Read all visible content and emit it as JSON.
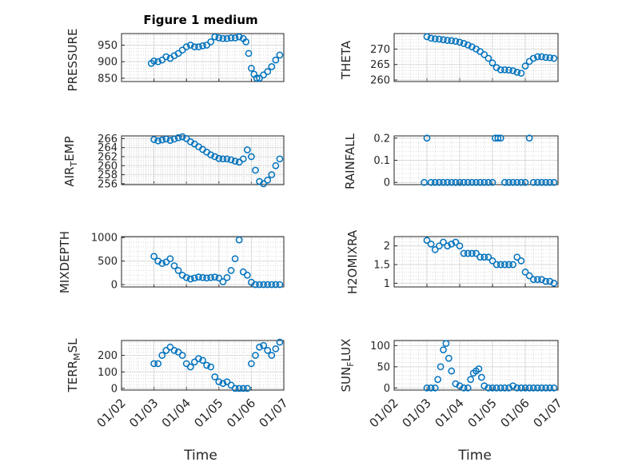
{
  "figure_title": "Figure 1 medium",
  "chart_data": [
    {
      "type": "scatter",
      "title": "Figure 1 medium",
      "ylabel": "PRESSURE",
      "xlim": [
        "2000-01-02",
        "2000-01-07"
      ],
      "ylim": [
        840,
        985
      ],
      "yticks": [
        850,
        900,
        950
      ],
      "grid": true,
      "x_tick_labels_shown": false,
      "x": [
        "2000-01-02T22:00",
        "2000-01-03T00:00",
        "2000-01-03T03:00",
        "2000-01-03T06:00",
        "2000-01-03T09:00",
        "2000-01-03T12:00",
        "2000-01-03T15:00",
        "2000-01-03T18:00",
        "2000-01-03T21:00",
        "2000-01-04T00:00",
        "2000-01-04T03:00",
        "2000-01-04T06:00",
        "2000-01-04T09:00",
        "2000-01-04T12:00",
        "2000-01-04T15:00",
        "2000-01-04T18:00",
        "2000-01-04T21:00",
        "2000-01-05T00:00",
        "2000-01-05T03:00",
        "2000-01-05T06:00",
        "2000-01-05T09:00",
        "2000-01-05T12:00",
        "2000-01-05T15:00",
        "2000-01-05T18:00",
        "2000-01-05T20:00",
        "2000-01-05T22:00",
        "2000-01-06T00:00",
        "2000-01-06T02:00",
        "2000-01-06T04:00",
        "2000-01-06T06:00",
        "2000-01-06T09:00",
        "2000-01-06T12:00",
        "2000-01-06T15:00",
        "2000-01-06T18:00",
        "2000-01-06T21:00"
      ],
      "y": [
        895,
        902,
        900,
        905,
        915,
        910,
        918,
        925,
        935,
        945,
        950,
        945,
        945,
        948,
        950,
        960,
        975,
        972,
        970,
        970,
        972,
        972,
        975,
        970,
        960,
        925,
        880,
        862,
        850,
        850,
        860,
        870,
        885,
        905,
        920
      ]
    },
    {
      "type": "scatter",
      "ylabel": "THETA",
      "xlim": [
        "2000-01-02",
        "2000-01-07"
      ],
      "ylim": [
        259.5,
        275
      ],
      "yticks": [
        260,
        265,
        270
      ],
      "grid": true,
      "x_tick_labels_shown": false,
      "x": [
        "2000-01-03T00:00",
        "2000-01-03T03:00",
        "2000-01-03T06:00",
        "2000-01-03T09:00",
        "2000-01-03T12:00",
        "2000-01-03T15:00",
        "2000-01-03T18:00",
        "2000-01-03T21:00",
        "2000-01-04T00:00",
        "2000-01-04T03:00",
        "2000-01-04T06:00",
        "2000-01-04T09:00",
        "2000-01-04T12:00",
        "2000-01-04T15:00",
        "2000-01-04T18:00",
        "2000-01-04T21:00",
        "2000-01-05T00:00",
        "2000-01-05T03:00",
        "2000-01-05T06:00",
        "2000-01-05T09:00",
        "2000-01-05T12:00",
        "2000-01-05T15:00",
        "2000-01-05T18:00",
        "2000-01-05T21:00",
        "2000-01-06T00:00",
        "2000-01-06T03:00",
        "2000-01-06T06:00",
        "2000-01-06T09:00",
        "2000-01-06T12:00",
        "2000-01-06T15:00",
        "2000-01-06T18:00",
        "2000-01-06T21:00"
      ],
      "y": [
        274,
        273.5,
        273.3,
        273.2,
        273,
        272.8,
        272.7,
        272.5,
        272.2,
        271.8,
        271.3,
        270.7,
        270,
        269.2,
        268.2,
        267,
        265.5,
        264,
        263.3,
        263.3,
        263.2,
        263,
        262.5,
        262.2,
        264.5,
        266,
        267,
        267.5,
        267.5,
        267.3,
        267.2,
        267
      ]
    },
    {
      "type": "scatter",
      "ylabel": "AIR_TEMP",
      "xlim": [
        "2000-01-02",
        "2000-01-07"
      ],
      "ylim": [
        255.8,
        266.6
      ],
      "yticks": [
        256,
        258,
        260,
        262,
        264,
        266
      ],
      "grid": true,
      "x_tick_labels_shown": false,
      "x": [
        "2000-01-03T00:00",
        "2000-01-03T03:00",
        "2000-01-03T06:00",
        "2000-01-03T09:00",
        "2000-01-03T12:00",
        "2000-01-03T15:00",
        "2000-01-03T18:00",
        "2000-01-03T21:00",
        "2000-01-04T00:00",
        "2000-01-04T03:00",
        "2000-01-04T06:00",
        "2000-01-04T09:00",
        "2000-01-04T12:00",
        "2000-01-04T15:00",
        "2000-01-04T18:00",
        "2000-01-04T21:00",
        "2000-01-05T00:00",
        "2000-01-05T03:00",
        "2000-01-05T06:00",
        "2000-01-05T09:00",
        "2000-01-05T12:00",
        "2000-01-05T15:00",
        "2000-01-05T18:00",
        "2000-01-05T21:00",
        "2000-01-06T00:00",
        "2000-01-06T03:00",
        "2000-01-06T06:00",
        "2000-01-06T09:00",
        "2000-01-06T12:00",
        "2000-01-06T15:00",
        "2000-01-06T18:00",
        "2000-01-06T21:00"
      ],
      "y": [
        265.8,
        265.5,
        265.7,
        265.9,
        265.6,
        265.9,
        266.2,
        266.4,
        266,
        265.3,
        264.8,
        264.2,
        263.6,
        263,
        262.4,
        262,
        261.6,
        261.5,
        261.5,
        261.3,
        261,
        260.8,
        261.5,
        263.5,
        262,
        259,
        256.5,
        256,
        256.8,
        258,
        260,
        261.5
      ]
    },
    {
      "type": "scatter",
      "ylabel": "RAINFALL",
      "xlim": [
        "2000-01-02",
        "2000-01-07"
      ],
      "ylim": [
        -0.01,
        0.21
      ],
      "yticks": [
        0,
        0.1,
        0.2
      ],
      "grid": true,
      "x_tick_labels_shown": false,
      "x": [
        "2000-01-02T22:00",
        "2000-01-03T00:00",
        "2000-01-03T03:00",
        "2000-01-03T06:00",
        "2000-01-03T09:00",
        "2000-01-03T12:00",
        "2000-01-03T15:00",
        "2000-01-03T18:00",
        "2000-01-03T21:00",
        "2000-01-04T00:00",
        "2000-01-04T03:00",
        "2000-01-04T06:00",
        "2000-01-04T09:00",
        "2000-01-04T12:00",
        "2000-01-04T15:00",
        "2000-01-04T18:00",
        "2000-01-04T21:00",
        "2000-01-05T00:00",
        "2000-01-05T02:00",
        "2000-01-05T04:00",
        "2000-01-05T06:00",
        "2000-01-05T09:00",
        "2000-01-05T12:00",
        "2000-01-05T15:00",
        "2000-01-05T18:00",
        "2000-01-05T21:00",
        "2000-01-06T00:00",
        "2000-01-06T03:00",
        "2000-01-06T06:00",
        "2000-01-06T09:00",
        "2000-01-06T12:00",
        "2000-01-06T15:00",
        "2000-01-06T18:00",
        "2000-01-06T21:00"
      ],
      "y": [
        0,
        0.2,
        0,
        0,
        0,
        0,
        0,
        0,
        0,
        0,
        0,
        0,
        0,
        0,
        0,
        0,
        0,
        0,
        0.2,
        0.2,
        0.2,
        0,
        0,
        0,
        0,
        0,
        0,
        0.2,
        0,
        0,
        0,
        0,
        0,
        0
      ]
    },
    {
      "type": "scatter",
      "ylabel": "MIXDEPTH",
      "xlim": [
        "2000-01-02",
        "2000-01-07"
      ],
      "ylim": [
        -50,
        1020
      ],
      "yticks": [
        0,
        500,
        1000
      ],
      "grid": true,
      "x_tick_labels_shown": false,
      "x": [
        "2000-01-03T00:00",
        "2000-01-03T03:00",
        "2000-01-03T06:00",
        "2000-01-03T09:00",
        "2000-01-03T12:00",
        "2000-01-03T15:00",
        "2000-01-03T18:00",
        "2000-01-03T21:00",
        "2000-01-04T00:00",
        "2000-01-04T03:00",
        "2000-01-04T06:00",
        "2000-01-04T09:00",
        "2000-01-04T12:00",
        "2000-01-04T15:00",
        "2000-01-04T18:00",
        "2000-01-04T21:00",
        "2000-01-05T00:00",
        "2000-01-05T03:00",
        "2000-01-05T06:00",
        "2000-01-05T09:00",
        "2000-01-05T12:00",
        "2000-01-05T15:00",
        "2000-01-05T18:00",
        "2000-01-05T21:00",
        "2000-01-06T00:00",
        "2000-01-06T03:00",
        "2000-01-06T06:00",
        "2000-01-06T09:00",
        "2000-01-06T12:00",
        "2000-01-06T15:00",
        "2000-01-06T18:00",
        "2000-01-06T21:00"
      ],
      "y": [
        600,
        500,
        450,
        480,
        550,
        400,
        300,
        200,
        150,
        120,
        140,
        160,
        150,
        140,
        150,
        160,
        140,
        60,
        150,
        300,
        550,
        950,
        270,
        200,
        50,
        0,
        0,
        0,
        0,
        0,
        0,
        0
      ]
    },
    {
      "type": "scatter",
      "ylabel": "H2OMIXRA",
      "xlim": [
        "2000-01-02",
        "2000-01-07"
      ],
      "ylim": [
        0.9,
        2.25
      ],
      "yticks": [
        1,
        1.5,
        2
      ],
      "grid": true,
      "x_tick_labels_shown": false,
      "x": [
        "2000-01-03T00:00",
        "2000-01-03T03:00",
        "2000-01-03T06:00",
        "2000-01-03T09:00",
        "2000-01-03T12:00",
        "2000-01-03T15:00",
        "2000-01-03T18:00",
        "2000-01-03T21:00",
        "2000-01-04T00:00",
        "2000-01-04T03:00",
        "2000-01-04T06:00",
        "2000-01-04T09:00",
        "2000-01-04T12:00",
        "2000-01-04T15:00",
        "2000-01-04T18:00",
        "2000-01-04T21:00",
        "2000-01-05T00:00",
        "2000-01-05T03:00",
        "2000-01-05T06:00",
        "2000-01-05T09:00",
        "2000-01-05T12:00",
        "2000-01-05T15:00",
        "2000-01-05T18:00",
        "2000-01-05T21:00",
        "2000-01-06T00:00",
        "2000-01-06T03:00",
        "2000-01-06T06:00",
        "2000-01-06T09:00",
        "2000-01-06T12:00",
        "2000-01-06T15:00",
        "2000-01-06T18:00",
        "2000-01-06T21:00"
      ],
      "y": [
        2.15,
        2.05,
        1.9,
        2,
        2.1,
        2,
        2.05,
        2.1,
        2,
        1.8,
        1.8,
        1.8,
        1.8,
        1.7,
        1.7,
        1.7,
        1.6,
        1.5,
        1.5,
        1.5,
        1.5,
        1.5,
        1.7,
        1.6,
        1.3,
        1.2,
        1.1,
        1.1,
        1.1,
        1.05,
        1.05,
        1
      ]
    },
    {
      "type": "scatter",
      "ylabel": "TERR_MSL",
      "xlim": [
        "2000-01-02",
        "2000-01-07"
      ],
      "ylim": [
        -10,
        290
      ],
      "yticks": [
        0,
        100,
        200
      ],
      "grid": true,
      "x_tick_labels_shown": false,
      "x": [
        "2000-01-03T00:00",
        "2000-01-03T03:00",
        "2000-01-03T06:00",
        "2000-01-03T09:00",
        "2000-01-03T12:00",
        "2000-01-03T15:00",
        "2000-01-03T18:00",
        "2000-01-03T21:00",
        "2000-01-04T00:00",
        "2000-01-04T03:00",
        "2000-01-04T06:00",
        "2000-01-04T09:00",
        "2000-01-04T12:00",
        "2000-01-04T15:00",
        "2000-01-04T18:00",
        "2000-01-04T21:00",
        "2000-01-05T00:00",
        "2000-01-05T03:00",
        "2000-01-05T06:00",
        "2000-01-05T09:00",
        "2000-01-05T12:00",
        "2000-01-05T15:00",
        "2000-01-05T18:00",
        "2000-01-05T21:00",
        "2000-01-06T00:00",
        "2000-01-06T03:00",
        "2000-01-06T06:00",
        "2000-01-06T09:00",
        "2000-01-06T12:00",
        "2000-01-06T15:00",
        "2000-01-06T18:00",
        "2000-01-06T21:00"
      ],
      "y": [
        150,
        150,
        200,
        230,
        250,
        230,
        220,
        200,
        150,
        130,
        160,
        180,
        170,
        140,
        130,
        70,
        40,
        30,
        40,
        20,
        0,
        0,
        0,
        0,
        150,
        200,
        250,
        260,
        230,
        200,
        240,
        280
      ]
    },
    {
      "type": "scatter",
      "ylabel": "SUN_FLUX",
      "xlim": [
        "2000-01-02",
        "2000-01-07"
      ],
      "ylim": [
        -5,
        112
      ],
      "yticks": [
        0,
        50,
        100
      ],
      "grid": true,
      "x_tick_labels_shown": false,
      "x": [
        "2000-01-03T00:00",
        "2000-01-03T03:00",
        "2000-01-03T06:00",
        "2000-01-03T08:00",
        "2000-01-03T10:00",
        "2000-01-03T12:00",
        "2000-01-03T14:00",
        "2000-01-03T16:00",
        "2000-01-03T18:00",
        "2000-01-03T21:00",
        "2000-01-04T00:00",
        "2000-01-04T03:00",
        "2000-01-04T06:00",
        "2000-01-04T08:00",
        "2000-01-04T10:00",
        "2000-01-04T12:00",
        "2000-01-04T14:00",
        "2000-01-04T16:00",
        "2000-01-04T18:00",
        "2000-01-04T21:00",
        "2000-01-05T00:00",
        "2000-01-05T03:00",
        "2000-01-05T06:00",
        "2000-01-05T09:00",
        "2000-01-05T12:00",
        "2000-01-05T15:00",
        "2000-01-05T18:00",
        "2000-01-05T21:00",
        "2000-01-06T00:00",
        "2000-01-06T03:00",
        "2000-01-06T06:00",
        "2000-01-06T09:00",
        "2000-01-06T12:00",
        "2000-01-06T15:00",
        "2000-01-06T18:00",
        "2000-01-06T21:00"
      ],
      "y": [
        0,
        0,
        0,
        20,
        50,
        90,
        105,
        70,
        40,
        10,
        5,
        0,
        0,
        20,
        35,
        40,
        45,
        25,
        5,
        0,
        0,
        0,
        0,
        0,
        0,
        5,
        0,
        0,
        0,
        0,
        0,
        0,
        0,
        0,
        0,
        0
      ]
    }
  ],
  "x_tick_labels": [
    "01/02",
    "01/03",
    "01/04",
    "01/05",
    "01/06",
    "01/07"
  ],
  "x_axis_label": "Time"
}
